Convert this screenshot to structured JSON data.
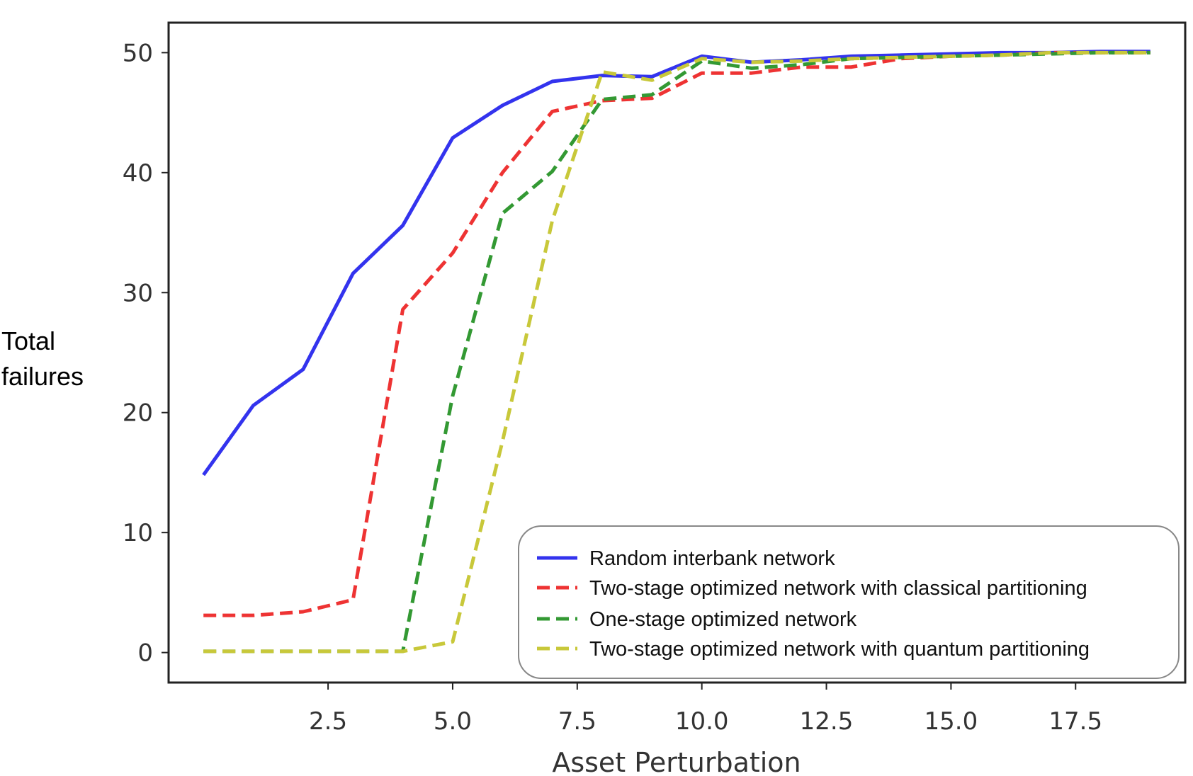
{
  "chart_data": {
    "type": "line",
    "title": "",
    "xlabel": "Asset Perturbation",
    "ylabel_lines": [
      "Total",
      "failures"
    ],
    "xlim": [
      -0.7,
      19.7
    ],
    "ylim": [
      -2.5,
      52.5
    ],
    "xticks": [
      2.5,
      5.0,
      7.5,
      10.0,
      12.5,
      15.0,
      17.5
    ],
    "xtick_labels": [
      "2.5",
      "5.0",
      "7.5",
      "10.0",
      "12.5",
      "15.0",
      "17.5"
    ],
    "yticks": [
      0,
      10,
      20,
      30,
      40,
      50
    ],
    "ytick_labels": [
      "0",
      "10",
      "20",
      "30",
      "40",
      "50"
    ],
    "grid": false,
    "legend": "bottom-right",
    "x": [
      0,
      1,
      2,
      3,
      4,
      5,
      6,
      7,
      8,
      9,
      10,
      11,
      12,
      13,
      14,
      15,
      16,
      17,
      18,
      19
    ],
    "series": [
      {
        "name": "Random interbank network",
        "color": "#3333ee",
        "dash": "solid",
        "values": [
          14.8,
          20.6,
          23.6,
          31.6,
          35.6,
          42.9,
          45.6,
          47.6,
          48.1,
          48.0,
          49.7,
          49.2,
          49.4,
          49.7,
          49.8,
          49.9,
          50.0,
          50.0,
          50.1,
          50.1
        ]
      },
      {
        "name": "Two-stage optimized network with classical partitioning",
        "color": "#ee3333",
        "dash": "dashed",
        "values": [
          3.1,
          3.1,
          3.4,
          4.4,
          28.6,
          33.3,
          40.0,
          45.1,
          46.0,
          46.2,
          48.3,
          48.3,
          48.8,
          48.8,
          49.5,
          49.7,
          49.8,
          50.0,
          50.0,
          50.0
        ]
      },
      {
        "name": "One-stage optimized network",
        "color": "#339933",
        "dash": "dashed",
        "values": [
          0.1,
          0.1,
          0.1,
          0.1,
          0.1,
          21.4,
          36.6,
          40.1,
          46.1,
          46.5,
          49.3,
          48.7,
          49.0,
          49.5,
          49.6,
          49.7,
          49.8,
          49.9,
          50.0,
          50.0
        ]
      },
      {
        "name": "Two-stage optimized network with quantum partitioning",
        "color": "#c8c83a",
        "dash": "dashed",
        "values": [
          0.1,
          0.1,
          0.1,
          0.1,
          0.1,
          0.9,
          17.6,
          36.0,
          48.4,
          47.7,
          49.5,
          49.2,
          49.3,
          49.5,
          49.6,
          49.7,
          49.8,
          50.0,
          50.0,
          50.0
        ]
      }
    ]
  }
}
